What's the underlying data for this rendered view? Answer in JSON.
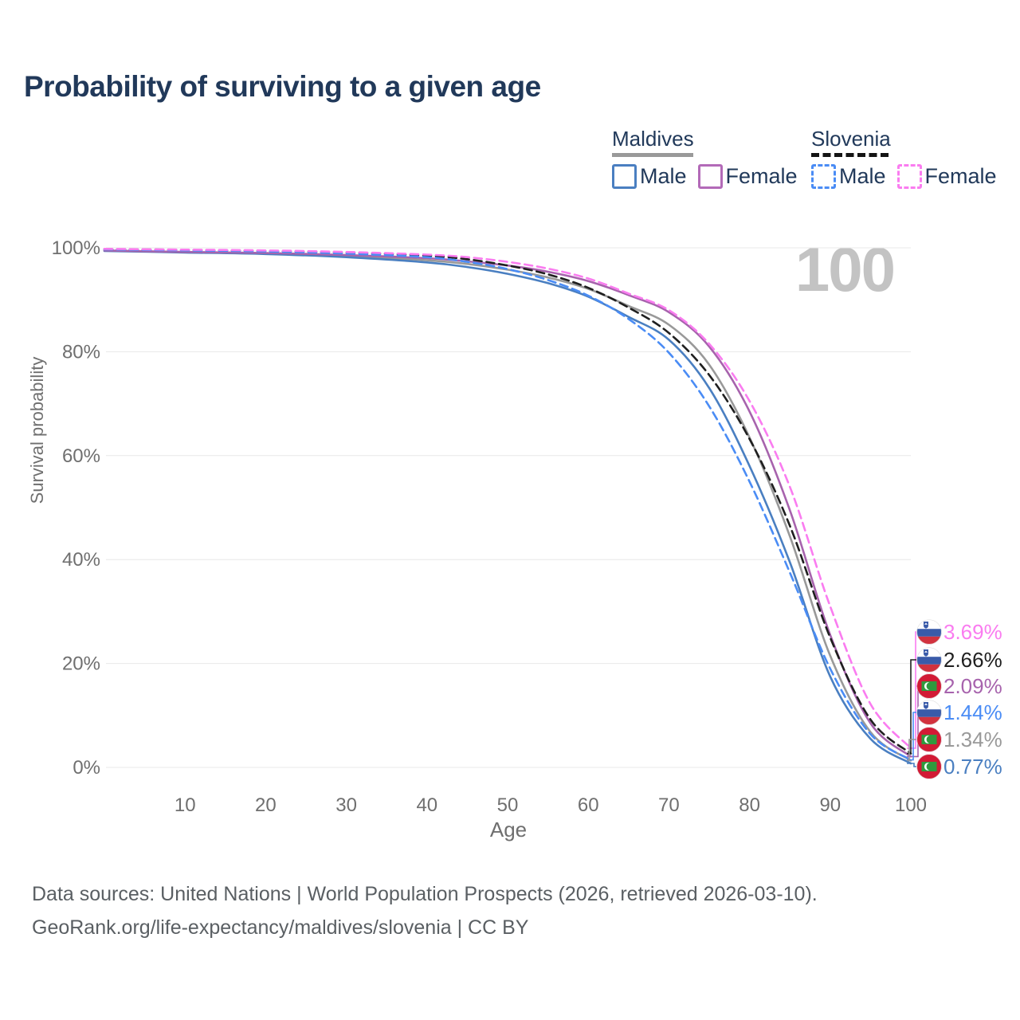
{
  "title": "Probability of surviving to a given age",
  "watermark_age": "100",
  "legend": {
    "groups": [
      {
        "name": "Maldives",
        "line_style": "solid",
        "line_color": "#999999",
        "items": [
          {
            "label": "Male",
            "swatch_color": "#4a7fc1"
          },
          {
            "label": "Female",
            "swatch_color": "#b36ab8"
          }
        ]
      },
      {
        "name": "Slovenia",
        "line_style": "dashed",
        "line_color": "#141414",
        "items": [
          {
            "label": "Male",
            "swatch_color": "#4a8cf5"
          },
          {
            "label": "Female",
            "swatch_color": "#fa7cf0"
          }
        ]
      }
    ]
  },
  "axes": {
    "x_label": "Age",
    "y_label": "Survival probability",
    "x_ticks": [
      "10",
      "20",
      "30",
      "40",
      "50",
      "60",
      "70",
      "80",
      "90",
      "100"
    ],
    "y_ticks": [
      "0%",
      "20%",
      "40%",
      "60%",
      "80%",
      "100%"
    ]
  },
  "chart_data": {
    "type": "line",
    "title": "Probability of surviving to a given age",
    "xlabel": "Age",
    "ylabel": "Survival probability",
    "xlim": [
      0,
      100
    ],
    "ylim": [
      0,
      100
    ],
    "grid": "horizontal",
    "legend_position": "top-right",
    "x_tick_values": [
      10,
      20,
      30,
      40,
      50,
      60,
      70,
      80,
      90,
      100
    ],
    "y_tick_values": [
      0,
      20,
      40,
      60,
      80,
      100
    ],
    "x": [
      0,
      10,
      20,
      30,
      40,
      45,
      50,
      55,
      60,
      65,
      70,
      75,
      80,
      85,
      90,
      95,
      100
    ],
    "series": [
      {
        "name": "Maldives Male",
        "country": "Maldives",
        "sex": "Male",
        "color": "#4a7fc1",
        "dash": "solid",
        "end_value": "0.77%",
        "values": [
          99.4,
          99.1,
          98.8,
          98.2,
          97.2,
          96.3,
          95.0,
          93.2,
          90.6,
          86.7,
          82.3,
          73.0,
          58.0,
          39.5,
          17.5,
          5.5,
          0.77
        ]
      },
      {
        "name": "Maldives Female",
        "country": "Maldives",
        "sex": "Female",
        "color": "#a763ad",
        "dash": "solid",
        "end_value": "2.09%",
        "values": [
          99.5,
          99.2,
          99.0,
          98.6,
          98.0,
          97.4,
          96.6,
          95.4,
          93.6,
          90.9,
          87.6,
          81.0,
          68.5,
          49.5,
          25.5,
          8.5,
          2.09
        ]
      },
      {
        "name": "Maldives Overall",
        "country": "Maldives",
        "sex": "Both",
        "color": "#999999",
        "dash": "solid",
        "end_value": "1.34%",
        "values": [
          99.45,
          99.15,
          98.9,
          98.4,
          97.6,
          96.9,
          95.8,
          94.3,
          92.1,
          88.8,
          85.2,
          77.5,
          63.5,
          44.5,
          21.5,
          6.8,
          1.34
        ]
      },
      {
        "name": "Slovenia Male",
        "country": "Slovenia",
        "sex": "Male",
        "color": "#4a8cf5",
        "dash": "dashed",
        "end_value": "1.44%",
        "values": [
          99.7,
          99.5,
          99.3,
          98.9,
          98.2,
          97.3,
          95.9,
          93.8,
          90.8,
          86.3,
          79.8,
          69.5,
          55.0,
          37.5,
          19.0,
          6.4,
          1.44
        ]
      },
      {
        "name": "Slovenia Overall",
        "country": "Slovenia",
        "sex": "Both",
        "color": "#1f1f1f",
        "dash": "dashed",
        "end_value": "2.66%",
        "values": [
          99.75,
          99.6,
          99.4,
          99.1,
          98.5,
          97.8,
          96.6,
          94.9,
          92.3,
          88.5,
          83.6,
          75.5,
          63.2,
          46.5,
          25.0,
          9.2,
          2.66
        ]
      },
      {
        "name": "Slovenia Female",
        "country": "Slovenia",
        "sex": "Female",
        "color": "#fa7cf0",
        "dash": "dashed",
        "end_value": "3.69%",
        "values": [
          99.8,
          99.65,
          99.5,
          99.2,
          98.7,
          98.2,
          97.3,
          96.0,
          94.1,
          91.2,
          88.0,
          81.5,
          70.5,
          54.0,
          31.0,
          12.2,
          3.69
        ]
      }
    ],
    "end_labels": [
      {
        "text": "3.69%",
        "flag": "slovenia",
        "color": "#fa7cf0",
        "series": 5
      },
      {
        "text": "2.66%",
        "flag": "slovenia",
        "color": "#1f1f1f",
        "series": 4
      },
      {
        "text": "2.09%",
        "flag": "maldives",
        "color": "#a763ad",
        "series": 1
      },
      {
        "text": "1.44%",
        "flag": "slovenia",
        "color": "#4a8cf5",
        "series": 3
      },
      {
        "text": "1.34%",
        "flag": "maldives",
        "color": "#999999",
        "series": 2
      },
      {
        "text": "0.77%",
        "flag": "maldives",
        "color": "#4a7fc1",
        "series": 0
      }
    ]
  },
  "footer": {
    "line1": "Data sources: United Nations | World Population Prospects (2026, retrieved 2026-03-10).",
    "line2": "GeoRank.org/life-expectancy/maldives/slovenia | CC BY"
  }
}
